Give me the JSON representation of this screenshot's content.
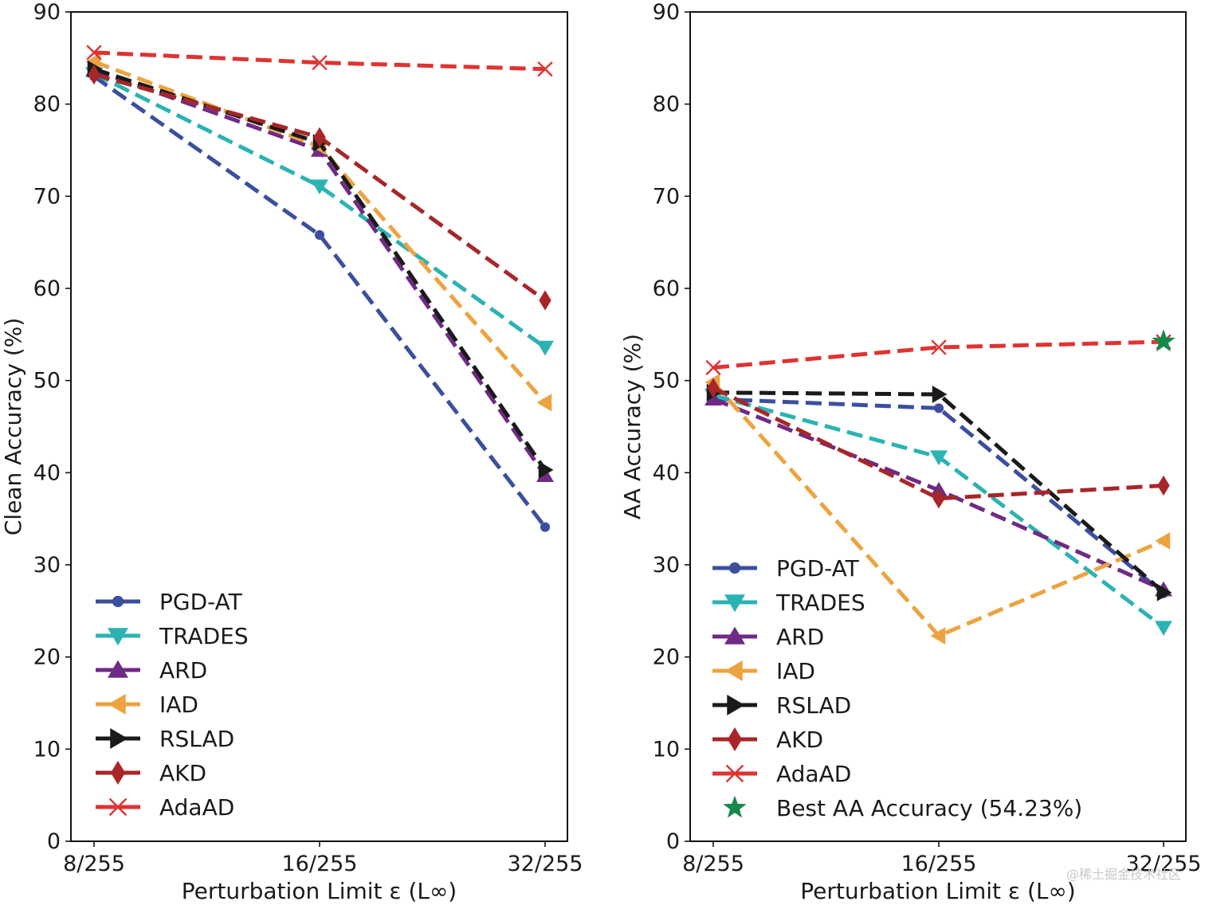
{
  "chart_data": [
    {
      "type": "line",
      "categories": [
        "8/255",
        "16/255",
        "32/255"
      ],
      "xlabel": "Perturbation Limit ε (L∞)",
      "ylabel": "Clean Accuracy (%)",
      "ylim": [
        0,
        90
      ],
      "yticks": [
        0,
        10,
        20,
        30,
        40,
        50,
        60,
        70,
        80,
        90
      ],
      "grid": false,
      "legend_position": "bottom-left",
      "series": [
        {
          "name": "PGD-AT",
          "values": [
            83.0,
            65.8,
            34.1
          ],
          "color": "#3b4f9e",
          "marker": "circle"
        },
        {
          "name": "TRADES",
          "values": [
            83.3,
            71.1,
            53.6
          ],
          "color": "#2bb3b3",
          "marker": "triangle-down"
        },
        {
          "name": "ARD",
          "values": [
            83.7,
            75.0,
            39.7
          ],
          "color": "#6f2a85",
          "marker": "triangle-up"
        },
        {
          "name": "IAD",
          "values": [
            84.6,
            75.4,
            47.6
          ],
          "color": "#eda33f",
          "marker": "triangle-left"
        },
        {
          "name": "RSLAD",
          "values": [
            83.8,
            75.8,
            40.3
          ],
          "color": "#1a1a1a",
          "marker": "triangle-right"
        },
        {
          "name": "AKD",
          "values": [
            83.2,
            76.4,
            58.7
          ],
          "color": "#a82628",
          "marker": "diamond"
        },
        {
          "name": "AdaAD",
          "values": [
            85.6,
            84.5,
            83.8
          ],
          "color": "#e03232",
          "marker": "x"
        }
      ]
    },
    {
      "type": "line",
      "categories": [
        "8/255",
        "16/255",
        "32/255"
      ],
      "xlabel": "Perturbation Limit ε (L∞)",
      "ylabel": "AA Accuracy (%)",
      "ylim": [
        0,
        90
      ],
      "yticks": [
        0,
        10,
        20,
        30,
        40,
        50,
        60,
        70,
        80,
        90
      ],
      "grid": false,
      "legend_position": "bottom-left",
      "series": [
        {
          "name": "PGD-AT",
          "values": [
            48.0,
            47.0,
            26.9
          ],
          "color": "#3b4f9e",
          "marker": "circle"
        },
        {
          "name": "TRADES",
          "values": [
            48.4,
            41.7,
            23.2
          ],
          "color": "#2bb3b3",
          "marker": "triangle-down"
        },
        {
          "name": "ARD",
          "values": [
            48.0,
            38.1,
            27.3
          ],
          "color": "#6f2a85",
          "marker": "triangle-up"
        },
        {
          "name": "IAD",
          "values": [
            49.8,
            22.3,
            32.6
          ],
          "color": "#eda33f",
          "marker": "triangle-left"
        },
        {
          "name": "RSLAD",
          "values": [
            48.7,
            48.5,
            27.0
          ],
          "color": "#1a1a1a",
          "marker": "triangle-right"
        },
        {
          "name": "AKD",
          "values": [
            49.2,
            37.2,
            38.6
          ],
          "color": "#a82628",
          "marker": "diamond"
        },
        {
          "name": "AdaAD",
          "values": [
            51.4,
            53.6,
            54.2
          ],
          "color": "#e03232",
          "marker": "x"
        }
      ],
      "highlight": {
        "name": "Best AA Accuracy (54.23%)",
        "category": "32/255",
        "value": 54.23,
        "color": "#138a4a",
        "marker": "star"
      }
    }
  ],
  "watermark": "@稀土掘金技术社区"
}
